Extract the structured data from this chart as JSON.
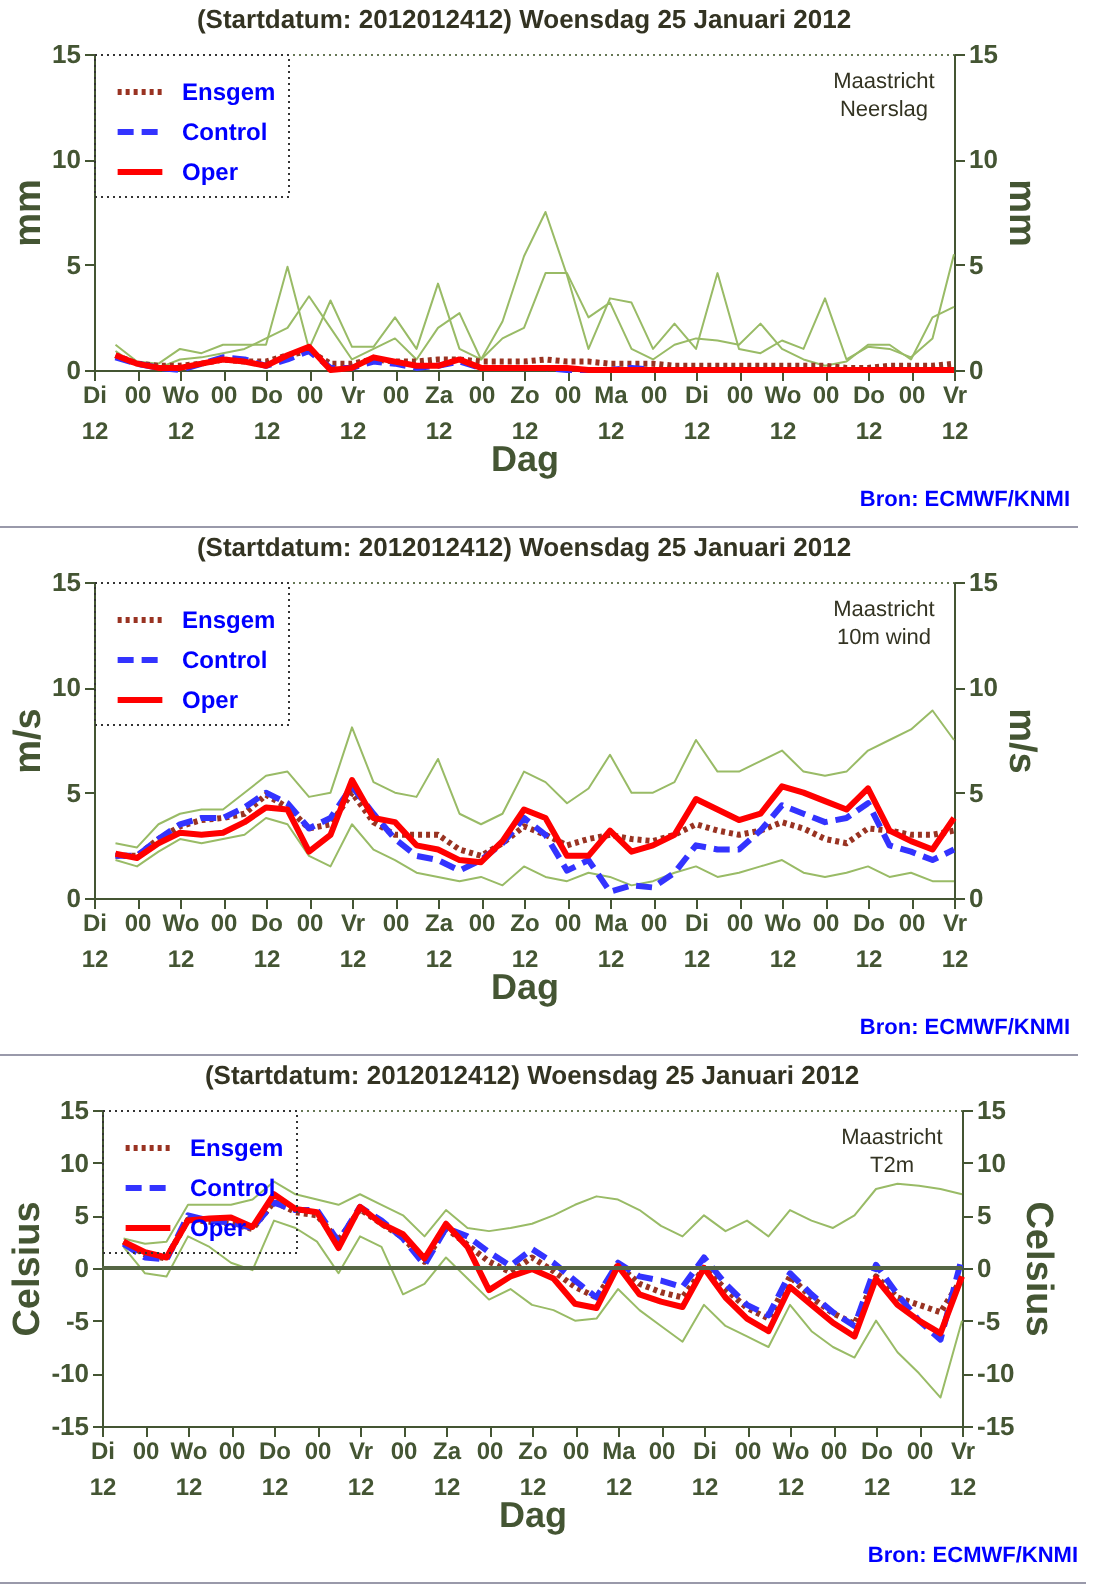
{
  "chart_data": [
    {
      "type": "line",
      "title": "(Startdatum: 2012012412)   Woensdag  25 Januari   2012",
      "xlabel": "Dag",
      "ylabel": "mm",
      "y2label": "mm",
      "legend": "top left",
      "annotations": [
        "Maastricht",
        "Neerslag",
        "Bron: ECMWF/KNMI"
      ],
      "x": [
        "2012-01-24T18:00",
        "2012-01-25T00:00",
        "2012-01-25T06:00",
        "2012-01-25T12:00",
        "2012-01-25T18:00",
        "2012-01-26T00:00",
        "2012-01-26T06:00",
        "2012-01-26T12:00",
        "2012-01-26T18:00",
        "2012-01-27T00:00",
        "2012-01-27T06:00",
        "2012-01-27T12:00",
        "2012-01-27T18:00",
        "2012-01-28T00:00",
        "2012-01-28T06:00",
        "2012-01-28T12:00",
        "2012-01-28T18:00",
        "2012-01-29T00:00",
        "2012-01-29T06:00",
        "2012-01-29T12:00",
        "2012-01-29T18:00",
        "2012-01-30T00:00",
        "2012-01-30T06:00",
        "2012-01-30T12:00",
        "2012-01-30T18:00",
        "2012-01-31T00:00",
        "2012-01-31T06:00",
        "2012-01-31T12:00",
        "2012-01-31T18:00",
        "2012-02-01T00:00",
        "2012-02-01T06:00",
        "2012-02-01T12:00",
        "2012-02-01T18:00",
        "2012-02-02T00:00",
        "2012-02-02T06:00",
        "2012-02-02T12:00",
        "2012-02-02T18:00",
        "2012-02-03T00:00",
        "2012-02-03T06:00",
        "2012-02-03T12:00"
      ],
      "xlim": [
        "2012-01-24T12:00",
        "2012-02-03T12:00"
      ],
      "xticks": [
        {
          "value": "2012-01-24T12:00",
          "label": "Di\n12"
        },
        {
          "value": "2012-01-25T00:00",
          "label": "00"
        },
        {
          "value": "2012-01-25T12:00",
          "label": "Wo\n12"
        },
        {
          "value": "2012-01-26T00:00",
          "label": "00"
        },
        {
          "value": "2012-01-26T12:00",
          "label": "Do\n12"
        },
        {
          "value": "2012-01-27T00:00",
          "label": "00"
        },
        {
          "value": "2012-01-27T12:00",
          "label": "Vr\n12"
        },
        {
          "value": "2012-01-28T00:00",
          "label": "00"
        },
        {
          "value": "2012-01-28T12:00",
          "label": "Za\n12"
        },
        {
          "value": "2012-01-29T00:00",
          "label": "00"
        },
        {
          "value": "2012-01-29T12:00",
          "label": "Zo\n12"
        },
        {
          "value": "2012-01-30T00:00",
          "label": "00"
        },
        {
          "value": "2012-01-30T12:00",
          "label": "Ma\n12"
        },
        {
          "value": "2012-01-31T00:00",
          "label": "00"
        },
        {
          "value": "2012-01-31T12:00",
          "label": "Di\n12"
        },
        {
          "value": "2012-02-01T00:00",
          "label": "00"
        },
        {
          "value": "2012-02-01T12:00",
          "label": "Wo\n12"
        },
        {
          "value": "2012-02-02T00:00",
          "label": "00"
        },
        {
          "value": "2012-02-02T12:00",
          "label": "Do\n12"
        },
        {
          "value": "2012-02-03T00:00",
          "label": "00"
        },
        {
          "value": "2012-02-03T12:00",
          "label": "Vr\n12"
        }
      ],
      "ylim": [
        0,
        15
      ],
      "yticks": [
        0,
        5,
        10,
        15
      ],
      "y2lim": [
        0,
        15
      ],
      "y2ticks": [
        0,
        5,
        10,
        15
      ],
      "series": [
        {
          "color": "#99bb66",
          "values": [
            1.2,
            0.4,
            0.3,
            1.0,
            0.8,
            1.2,
            1.2,
            1.2,
            4.9,
            1.0,
            3.3,
            1.1,
            1.1,
            2.5,
            1.0,
            4.1,
            1.0,
            0.5,
            2.3,
            5.4,
            7.5,
            4.5,
            1.0,
            3.4,
            3.2,
            1.0,
            2.2,
            1.0,
            4.6,
            1.0,
            0.8,
            1.4,
            1.0,
            3.4,
            0.5,
            1.1,
            1.0,
            0.6,
            1.5,
            5.5
          ]
        },
        {
          "color": "#99bb66",
          "values": [
            0.9,
            0.2,
            0.1,
            0.5,
            0.6,
            0.8,
            1.0,
            1.5,
            2.0,
            3.5,
            2.0,
            0.5,
            1.0,
            1.5,
            0.5,
            2.0,
            2.7,
            0.5,
            1.5,
            2.0,
            4.6,
            4.6,
            2.5,
            3.2,
            1.0,
            0.5,
            1.2,
            1.5,
            1.4,
            1.2,
            2.2,
            1.0,
            0.5,
            0.2,
            0.4,
            1.2,
            1.2,
            0.5,
            2.5,
            3.0
          ]
        },
        {
          "name": "Ensgem",
          "color": "#993322",
          "line_style": "dotted",
          "values": [
            0.7,
            0.3,
            0.2,
            0.2,
            0.3,
            0.5,
            0.4,
            0.4,
            0.7,
            0.9,
            0.3,
            0.3,
            0.5,
            0.4,
            0.4,
            0.5,
            0.5,
            0.4,
            0.4,
            0.4,
            0.5,
            0.4,
            0.4,
            0.3,
            0.3,
            0.3,
            0.2,
            0.2,
            0.2,
            0.2,
            0.2,
            0.2,
            0.2,
            0.2,
            0.1,
            0.1,
            0.2,
            0.2,
            0.2,
            0.3
          ]
        },
        {
          "name": "Control",
          "color": "#3333ff",
          "line_style": "dashed",
          "values": [
            0.6,
            0.3,
            0.1,
            0.0,
            0.3,
            0.6,
            0.5,
            0.2,
            0.5,
            0.9,
            0.1,
            0.1,
            0.4,
            0.3,
            0.1,
            0.2,
            0.4,
            0.1,
            0.1,
            0.1,
            0.1,
            0.0,
            0.0,
            0.0,
            0.1,
            0.0,
            0.0,
            null,
            null,
            null,
            null,
            null,
            null,
            null,
            null,
            null,
            null,
            null,
            null,
            null
          ]
        },
        {
          "name": "Oper",
          "color": "#ff0000",
          "line_style": "solid",
          "values": [
            0.7,
            0.3,
            0.1,
            0.1,
            0.3,
            0.5,
            0.4,
            0.2,
            0.7,
            1.1,
            0.0,
            0.1,
            0.6,
            0.4,
            0.2,
            0.2,
            0.5,
            0.1,
            0.1,
            0.1,
            0.1,
            0.1,
            0.0,
            0.0,
            0.0,
            0.0,
            0.0,
            0.0,
            0.0,
            0.0,
            0.0,
            0.0,
            0.0,
            0.0,
            0.0,
            0.0,
            0.0,
            0.0,
            0.0,
            0.0
          ]
        }
      ]
    },
    {
      "type": "line",
      "title": "(Startdatum: 2012012412)   Woensdag  25 Januari   2012",
      "xlabel": "Dag",
      "ylabel": "m/s",
      "y2label": "m/s",
      "legend": "top left",
      "annotations": [
        "Maastricht",
        "10m wind",
        "Bron: ECMWF/KNMI"
      ],
      "x": [
        "2012-01-24T18:00",
        "2012-01-25T00:00",
        "2012-01-25T06:00",
        "2012-01-25T12:00",
        "2012-01-25T18:00",
        "2012-01-26T00:00",
        "2012-01-26T06:00",
        "2012-01-26T12:00",
        "2012-01-26T18:00",
        "2012-01-27T00:00",
        "2012-01-27T06:00",
        "2012-01-27T12:00",
        "2012-01-27T18:00",
        "2012-01-28T00:00",
        "2012-01-28T06:00",
        "2012-01-28T12:00",
        "2012-01-28T18:00",
        "2012-01-29T00:00",
        "2012-01-29T06:00",
        "2012-01-29T12:00",
        "2012-01-29T18:00",
        "2012-01-30T00:00",
        "2012-01-30T06:00",
        "2012-01-30T12:00",
        "2012-01-30T18:00",
        "2012-01-31T00:00",
        "2012-01-31T06:00",
        "2012-01-31T12:00",
        "2012-01-31T18:00",
        "2012-02-01T00:00",
        "2012-02-01T06:00",
        "2012-02-01T12:00",
        "2012-02-01T18:00",
        "2012-02-02T00:00",
        "2012-02-02T06:00",
        "2012-02-02T12:00",
        "2012-02-02T18:00",
        "2012-02-03T00:00",
        "2012-02-03T06:00",
        "2012-02-03T12:00"
      ],
      "xlim": [
        "2012-01-24T12:00",
        "2012-02-03T12:00"
      ],
      "xticks": [
        {
          "value": "2012-01-24T12:00",
          "label": "Di\n12"
        },
        {
          "value": "2012-01-25T00:00",
          "label": "00"
        },
        {
          "value": "2012-01-25T12:00",
          "label": "Wo\n12"
        },
        {
          "value": "2012-01-26T00:00",
          "label": "00"
        },
        {
          "value": "2012-01-26T12:00",
          "label": "Do\n12"
        },
        {
          "value": "2012-01-27T00:00",
          "label": "00"
        },
        {
          "value": "2012-01-27T12:00",
          "label": "Vr\n12"
        },
        {
          "value": "2012-01-28T00:00",
          "label": "00"
        },
        {
          "value": "2012-01-28T12:00",
          "label": "Za\n12"
        },
        {
          "value": "2012-01-29T00:00",
          "label": "00"
        },
        {
          "value": "2012-01-29T12:00",
          "label": "Zo\n12"
        },
        {
          "value": "2012-01-30T00:00",
          "label": "00"
        },
        {
          "value": "2012-01-30T12:00",
          "label": "Ma\n12"
        },
        {
          "value": "2012-01-31T00:00",
          "label": "00"
        },
        {
          "value": "2012-01-31T12:00",
          "label": "Di\n12"
        },
        {
          "value": "2012-02-01T00:00",
          "label": "00"
        },
        {
          "value": "2012-02-01T12:00",
          "label": "Wo\n12"
        },
        {
          "value": "2012-02-02T00:00",
          "label": "00"
        },
        {
          "value": "2012-02-02T12:00",
          "label": "Do\n12"
        },
        {
          "value": "2012-02-03T00:00",
          "label": "00"
        },
        {
          "value": "2012-02-03T12:00",
          "label": "Vr\n12"
        }
      ],
      "ylim": [
        0,
        15
      ],
      "yticks": [
        0,
        5,
        10,
        15
      ],
      "y2lim": [
        0,
        15
      ],
      "y2ticks": [
        0,
        5,
        10,
        15
      ],
      "series": [
        {
          "color": "#99bb66",
          "values": [
            2.6,
            2.4,
            3.5,
            4.0,
            4.2,
            4.2,
            5.0,
            5.8,
            6.0,
            4.8,
            5.0,
            8.1,
            5.5,
            5.0,
            4.8,
            6.6,
            4.0,
            3.5,
            4.0,
            6.0,
            5.5,
            4.5,
            5.2,
            6.8,
            5.0,
            5.0,
            5.5,
            7.5,
            6.0,
            6.0,
            6.5,
            7.0,
            6.0,
            5.8,
            6.0,
            7.0,
            7.5,
            8.0,
            8.9,
            7.5
          ]
        },
        {
          "color": "#99bb66",
          "values": [
            1.8,
            1.5,
            2.2,
            2.8,
            2.6,
            2.8,
            3.0,
            3.8,
            3.5,
            2.0,
            1.5,
            3.5,
            2.3,
            1.8,
            1.2,
            1.0,
            0.8,
            1.0,
            0.6,
            1.5,
            1.0,
            0.8,
            1.2,
            1.0,
            0.6,
            0.8,
            1.2,
            1.5,
            1.0,
            1.2,
            1.5,
            1.8,
            1.2,
            1.0,
            1.2,
            1.5,
            1.0,
            1.2,
            0.8,
            0.8
          ]
        },
        {
          "name": "Ensgem",
          "color": "#993322",
          "line_style": "dotted",
          "values": [
            2.0,
            2.0,
            2.8,
            3.4,
            3.7,
            3.8,
            4.0,
            4.9,
            4.3,
            3.3,
            3.5,
            5.0,
            3.6,
            3.0,
            3.0,
            3.0,
            2.3,
            2.0,
            2.6,
            3.4,
            3.0,
            2.5,
            2.8,
            3.0,
            2.8,
            2.7,
            3.0,
            3.5,
            3.2,
            3.0,
            3.2,
            3.6,
            3.3,
            2.8,
            2.6,
            3.3,
            3.2,
            3.0,
            3.0,
            3.2
          ]
        },
        {
          "name": "Control",
          "color": "#3333ff",
          "line_style": "dashed",
          "values": [
            2.0,
            2.0,
            2.8,
            3.5,
            3.8,
            3.8,
            4.3,
            5.0,
            4.5,
            3.3,
            3.8,
            5.3,
            4.0,
            2.8,
            2.0,
            1.8,
            1.3,
            1.8,
            2.6,
            3.8,
            3.0,
            1.3,
            1.8,
            0.3,
            0.6,
            0.5,
            1.2,
            2.5,
            2.3,
            2.3,
            3.2,
            4.4,
            4.0,
            3.6,
            3.8,
            4.5,
            2.5,
            2.2,
            1.8,
            2.3
          ]
        },
        {
          "name": "Oper",
          "color": "#ff0000",
          "line_style": "solid",
          "values": [
            2.1,
            1.9,
            2.6,
            3.1,
            3.0,
            3.1,
            3.6,
            4.3,
            4.2,
            2.2,
            3.0,
            5.6,
            3.8,
            3.6,
            2.5,
            2.3,
            1.8,
            1.7,
            2.7,
            4.2,
            3.8,
            2.0,
            2.0,
            3.2,
            2.2,
            2.5,
            3.0,
            4.7,
            4.2,
            3.7,
            4.0,
            5.3,
            5.0,
            4.6,
            4.2,
            5.2,
            3.2,
            2.7,
            2.3,
            3.8
          ]
        }
      ]
    },
    {
      "type": "line",
      "title": "(Startdatum: 2012012412)   Woensdag  25 Januari   2012",
      "xlabel": "Dag",
      "ylabel": "Celsius",
      "y2label": "Celsius",
      "legend": "top left",
      "annotations": [
        "Maastricht",
        "T2m",
        "Bron: ECMWF/KNMI"
      ],
      "ref_lines": [
        {
          "axis": "y",
          "value": 0,
          "color": "#556644"
        }
      ],
      "x": [
        "2012-01-24T18:00",
        "2012-01-25T00:00",
        "2012-01-25T06:00",
        "2012-01-25T12:00",
        "2012-01-25T18:00",
        "2012-01-26T00:00",
        "2012-01-26T06:00",
        "2012-01-26T12:00",
        "2012-01-26T18:00",
        "2012-01-27T00:00",
        "2012-01-27T06:00",
        "2012-01-27T12:00",
        "2012-01-27T18:00",
        "2012-01-28T00:00",
        "2012-01-28T06:00",
        "2012-01-28T12:00",
        "2012-01-28T18:00",
        "2012-01-29T00:00",
        "2012-01-29T06:00",
        "2012-01-29T12:00",
        "2012-01-29T18:00",
        "2012-01-30T00:00",
        "2012-01-30T06:00",
        "2012-01-30T12:00",
        "2012-01-30T18:00",
        "2012-01-31T00:00",
        "2012-01-31T06:00",
        "2012-01-31T12:00",
        "2012-01-31T18:00",
        "2012-02-01T00:00",
        "2012-02-01T06:00",
        "2012-02-01T12:00",
        "2012-02-01T18:00",
        "2012-02-02T00:00",
        "2012-02-02T06:00",
        "2012-02-02T12:00",
        "2012-02-02T18:00",
        "2012-02-03T00:00",
        "2012-02-03T06:00",
        "2012-02-03T12:00"
      ],
      "xlim": [
        "2012-01-24T12:00",
        "2012-02-03T12:00"
      ],
      "xticks": [
        {
          "value": "2012-01-24T12:00",
          "label": "Di\n12"
        },
        {
          "value": "2012-01-25T00:00",
          "label": "00"
        },
        {
          "value": "2012-01-25T12:00",
          "label": "Wo\n12"
        },
        {
          "value": "2012-01-26T00:00",
          "label": "00"
        },
        {
          "value": "2012-01-26T12:00",
          "label": "Do\n12"
        },
        {
          "value": "2012-01-27T00:00",
          "label": "00"
        },
        {
          "value": "2012-01-27T12:00",
          "label": "Vr\n12"
        },
        {
          "value": "2012-01-28T00:00",
          "label": "00"
        },
        {
          "value": "2012-01-28T12:00",
          "label": "Za\n12"
        },
        {
          "value": "2012-01-29T00:00",
          "label": "00"
        },
        {
          "value": "2012-01-29T12:00",
          "label": "Zo\n12"
        },
        {
          "value": "2012-01-30T00:00",
          "label": "00"
        },
        {
          "value": "2012-01-30T12:00",
          "label": "Ma\n12"
        },
        {
          "value": "2012-01-31T00:00",
          "label": "00"
        },
        {
          "value": "2012-01-31T12:00",
          "label": "Di\n12"
        },
        {
          "value": "2012-02-01T00:00",
          "label": "00"
        },
        {
          "value": "2012-02-01T12:00",
          "label": "Wo\n12"
        },
        {
          "value": "2012-02-02T00:00",
          "label": "00"
        },
        {
          "value": "2012-02-02T12:00",
          "label": "Do\n12"
        },
        {
          "value": "2012-02-03T00:00",
          "label": "00"
        },
        {
          "value": "2012-02-03T12:00",
          "label": "Vr\n12"
        }
      ],
      "ylim": [
        -15,
        15
      ],
      "yticks": [
        -15,
        -10,
        -5,
        0,
        5,
        10,
        15
      ],
      "y2lim": [
        -15,
        15
      ],
      "y2ticks": [
        -15,
        -10,
        -5,
        0,
        5,
        10,
        15
      ],
      "series": [
        {
          "color": "#99bb66",
          "values": [
            2.8,
            2.3,
            2.5,
            6.0,
            6.0,
            6.0,
            6.5,
            8.2,
            7.0,
            6.5,
            6.0,
            7.0,
            6.0,
            5.0,
            3.0,
            5.5,
            3.8,
            3.5,
            3.8,
            4.2,
            5.0,
            6.0,
            6.8,
            6.5,
            5.5,
            4.0,
            3.0,
            5.0,
            3.5,
            4.5,
            3.0,
            5.5,
            4.5,
            3.8,
            5.0,
            7.5,
            8.0,
            7.8,
            7.5,
            7.0
          ]
        },
        {
          "color": "#99bb66",
          "values": [
            2.0,
            -0.5,
            -0.8,
            3.0,
            2.0,
            0.5,
            -0.2,
            4.5,
            3.8,
            2.5,
            -0.5,
            3.0,
            2.0,
            -2.5,
            -1.5,
            1.0,
            -1.0,
            -3.0,
            -2.0,
            -3.5,
            -4.0,
            -5.0,
            -4.8,
            -2.0,
            -4.0,
            -5.5,
            -7.0,
            -3.5,
            -5.5,
            -6.5,
            -7.5,
            -3.5,
            -6.0,
            -7.5,
            -8.5,
            -5.0,
            -8.0,
            -10.0,
            -12.3,
            -5.0
          ]
        },
        {
          "name": "Ensgem",
          "color": "#993322",
          "line_style": "dotted",
          "values": [
            2.5,
            1.3,
            0.9,
            4.6,
            4.4,
            4.2,
            3.7,
            6.3,
            5.3,
            5.0,
            2.6,
            5.6,
            4.2,
            2.9,
            0.6,
            3.8,
            2.2,
            0.6,
            -0.4,
            1.0,
            -0.3,
            -1.8,
            -2.8,
            0.3,
            -1.5,
            -2.3,
            -2.8,
            0.0,
            -2.0,
            -3.8,
            -4.8,
            -0.8,
            -2.8,
            -4.3,
            -5.3,
            -0.8,
            -2.8,
            -3.5,
            -4.2,
            -1.0
          ]
        },
        {
          "name": "Control",
          "color": "#3333ff",
          "line_style": "dashed",
          "values": [
            2.3,
            1.0,
            0.8,
            5.0,
            4.5,
            4.3,
            3.8,
            6.2,
            5.5,
            5.5,
            2.5,
            5.8,
            4.5,
            2.8,
            0.3,
            3.8,
            3.0,
            1.5,
            0.2,
            1.8,
            0.5,
            -1.2,
            -2.8,
            0.5,
            -0.8,
            -1.2,
            -1.8,
            1.0,
            -1.5,
            -3.5,
            -4.5,
            -0.5,
            -2.5,
            -4.2,
            -5.5,
            0.3,
            -2.5,
            -5.0,
            -6.8,
            1.0
          ]
        },
        {
          "name": "Oper",
          "color": "#ff0000",
          "line_style": "solid",
          "values": [
            2.5,
            1.5,
            1.0,
            4.5,
            4.7,
            4.8,
            3.9,
            7.0,
            5.6,
            5.3,
            1.9,
            5.8,
            4.2,
            3.2,
            0.9,
            4.2,
            2.0,
            -2.1,
            -0.8,
            -0.1,
            -1.0,
            -3.4,
            -3.8,
            0.2,
            -2.5,
            -3.2,
            -3.7,
            0.0,
            -2.8,
            -4.8,
            -6.0,
            -1.8,
            -3.5,
            -5.2,
            -6.5,
            -1.0,
            -3.5,
            -5.0,
            -6.2,
            -0.8
          ]
        }
      ]
    }
  ]
}
